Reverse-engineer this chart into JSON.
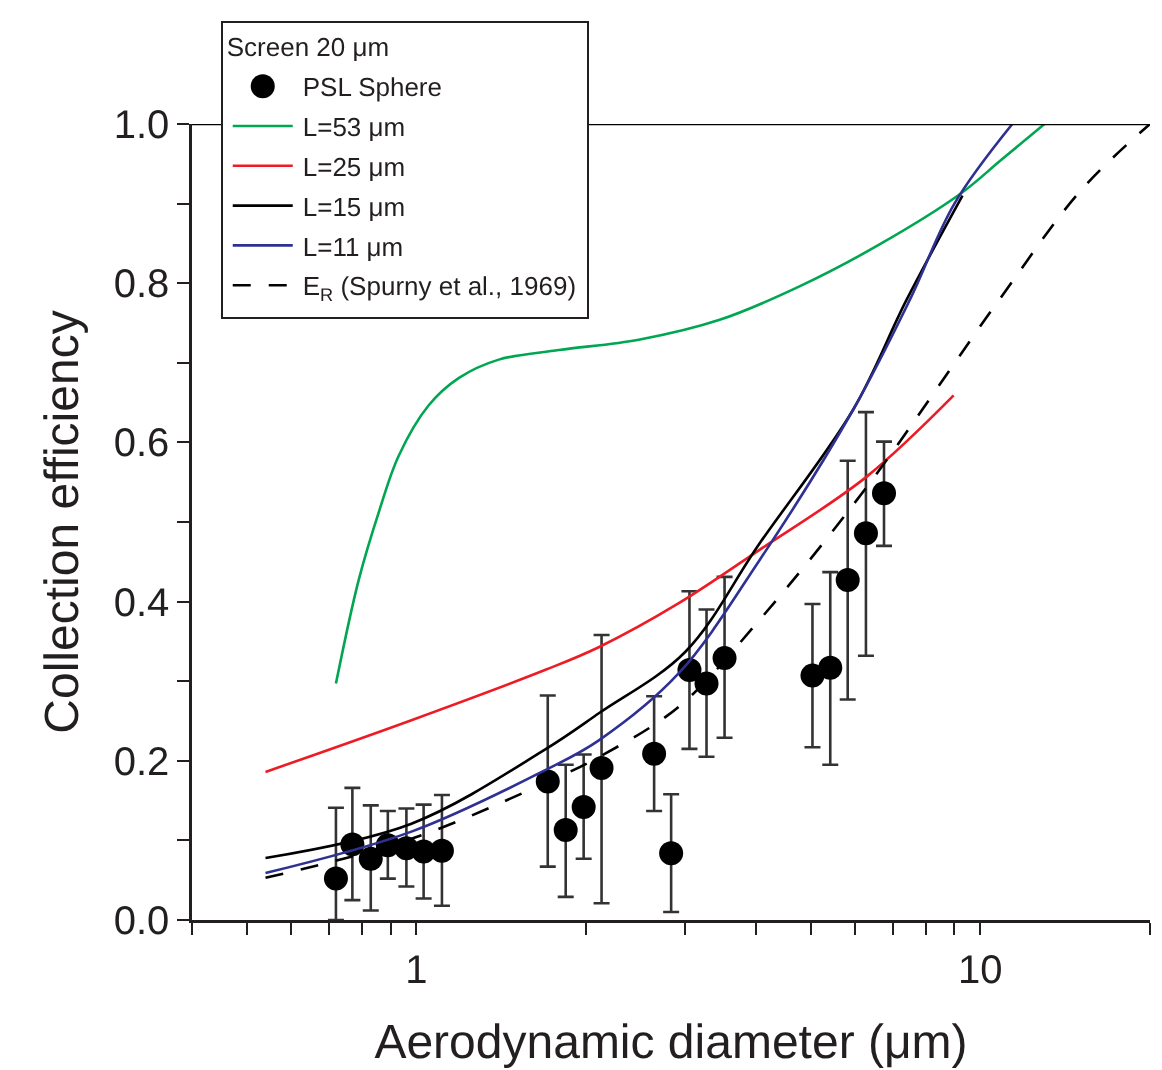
{
  "chart_data": {
    "type": "line",
    "xlabel": "Aerodynamic diameter (μm)",
    "ylabel": "Collection efficiency",
    "legend_title": "Screen 20 μm",
    "log": "x",
    "grid": false,
    "legend": "top left",
    "xlim": [
      0.4,
      20
    ],
    "xticks": [
      {
        "value": 0.4,
        "label": null
      },
      {
        "value": 0.5,
        "label": null
      },
      {
        "value": 0.6,
        "label": null
      },
      {
        "value": 0.7,
        "label": null
      },
      {
        "value": 0.8,
        "label": null
      },
      {
        "value": 0.9,
        "label": null
      },
      1,
      {
        "value": 2,
        "label": null
      },
      {
        "value": 3,
        "label": null
      },
      {
        "value": 4,
        "label": null
      },
      {
        "value": 5,
        "label": null
      },
      {
        "value": 6,
        "label": null
      },
      {
        "value": 7,
        "label": null
      },
      {
        "value": 8,
        "label": null
      },
      {
        "value": 9,
        "label": null
      },
      10,
      {
        "value": 20,
        "label": null
      }
    ],
    "ylim": [
      0,
      1.0
    ],
    "yticks": [
      {
        "value": 0,
        "label": "0.0"
      },
      {
        "value": 0.1,
        "label": null
      },
      0.2,
      {
        "value": 0.3,
        "label": null
      },
      0.4,
      {
        "value": 0.5,
        "label": null
      },
      0.6,
      {
        "value": 0.7,
        "label": null
      },
      0.8,
      {
        "value": 0.9,
        "label": null
      },
      {
        "value": 1.0,
        "label": "1.0"
      }
    ],
    "ref_lines": [
      {
        "axis": "y",
        "value": 1.0,
        "label": null,
        "color": "#000000"
      }
    ],
    "series": [
      {
        "name": "PSL Sphere",
        "type": "scatter",
        "marker": "circle",
        "color": "#000000",
        "x": [
          0.72,
          0.77,
          0.83,
          0.89,
          0.96,
          1.03,
          1.11,
          1.71,
          1.84,
          1.98,
          2.13,
          2.64,
          2.83,
          3.05,
          3.27,
          3.52,
          5.04,
          5.42,
          5.82,
          6.27,
          6.75
        ],
        "values": [
          0.052,
          0.095,
          0.077,
          0.094,
          0.09,
          0.086,
          0.087,
          0.174,
          0.113,
          0.142,
          0.191,
          0.209,
          0.084,
          0.314,
          0.297,
          0.329,
          0.307,
          0.317,
          0.427,
          0.486,
          0.536
        ],
        "errors": [
          [
            0.0,
            0.141
          ],
          [
            0.025,
            0.166
          ],
          [
            0.012,
            0.144
          ],
          [
            0.052,
            0.137
          ],
          [
            0.042,
            0.14
          ],
          [
            0.027,
            0.145
          ],
          [
            0.018,
            0.157
          ],
          [
            0.067,
            0.282
          ],
          [
            0.029,
            0.195
          ],
          [
            0.077,
            0.208
          ],
          [
            0.021,
            0.358
          ],
          [
            0.137,
            0.281
          ],
          [
            0.01,
            0.158
          ],
          [
            0.215,
            0.413
          ],
          [
            0.205,
            0.39
          ],
          [
            0.229,
            0.431
          ],
          [
            0.217,
            0.397
          ],
          [
            0.195,
            0.437
          ],
          [
            0.277,
            0.577
          ],
          [
            0.332,
            0.638
          ],
          [
            0.47,
            0.601
          ]
        ]
      },
      {
        "name": "L=53 μm",
        "type": "line",
        "line_style": "solid",
        "color": "#00a651",
        "x": [
          0.72,
          0.79,
          0.86,
          0.93,
          1.05,
          1.19,
          1.4,
          1.79,
          2.48,
          3.45,
          4.78,
          6.64,
          9.21,
          10.9,
          13.0
        ],
        "values": [
          0.297,
          0.427,
          0.515,
          0.583,
          0.646,
          0.681,
          0.704,
          0.716,
          0.729,
          0.754,
          0.796,
          0.849,
          0.912,
          0.955,
          1.0
        ]
      },
      {
        "name": "L=25 μm",
        "type": "line",
        "line_style": "solid",
        "color": "#ed1c24",
        "x": [
          0.54,
          0.98,
          1.69,
          2.11,
          2.92,
          4.06,
          6.29,
          8.97
        ],
        "values": [
          0.186,
          0.251,
          0.314,
          0.343,
          0.398,
          0.465,
          0.557,
          0.659
        ]
      },
      {
        "name": "L=15 μm",
        "type": "line",
        "line_style": "solid",
        "color": "#000000",
        "x": [
          0.54,
          0.98,
          1.69,
          2.11,
          3.0,
          4.06,
          5.95,
          7.4,
          9.3
        ],
        "values": [
          0.078,
          0.121,
          0.214,
          0.26,
          0.337,
          0.473,
          0.641,
          0.779,
          0.91
        ]
      },
      {
        "name": "L=11 μm",
        "type": "line",
        "line_style": "solid",
        "color": "#2e3192",
        "x": [
          0.54,
          0.98,
          1.69,
          2.11,
          2.92,
          4.06,
          5.95,
          7.5,
          9.0,
          11.4
        ],
        "values": [
          0.059,
          0.111,
          0.188,
          0.226,
          0.31,
          0.452,
          0.641,
          0.779,
          0.9,
          1.0
        ]
      },
      {
        "name": "E$_{R}$ (Spurny et al., 1969)",
        "type": "line",
        "line_style": "dashed",
        "color": "#000000",
        "x": [
          0.54,
          0.98,
          1.69,
          2.11,
          2.92,
          4.06,
          6.29,
          10.8,
          15.1,
          20
        ],
        "values": [
          0.053,
          0.102,
          0.172,
          0.205,
          0.268,
          0.377,
          0.544,
          0.779,
          0.917,
          1.0
        ]
      }
    ]
  }
}
